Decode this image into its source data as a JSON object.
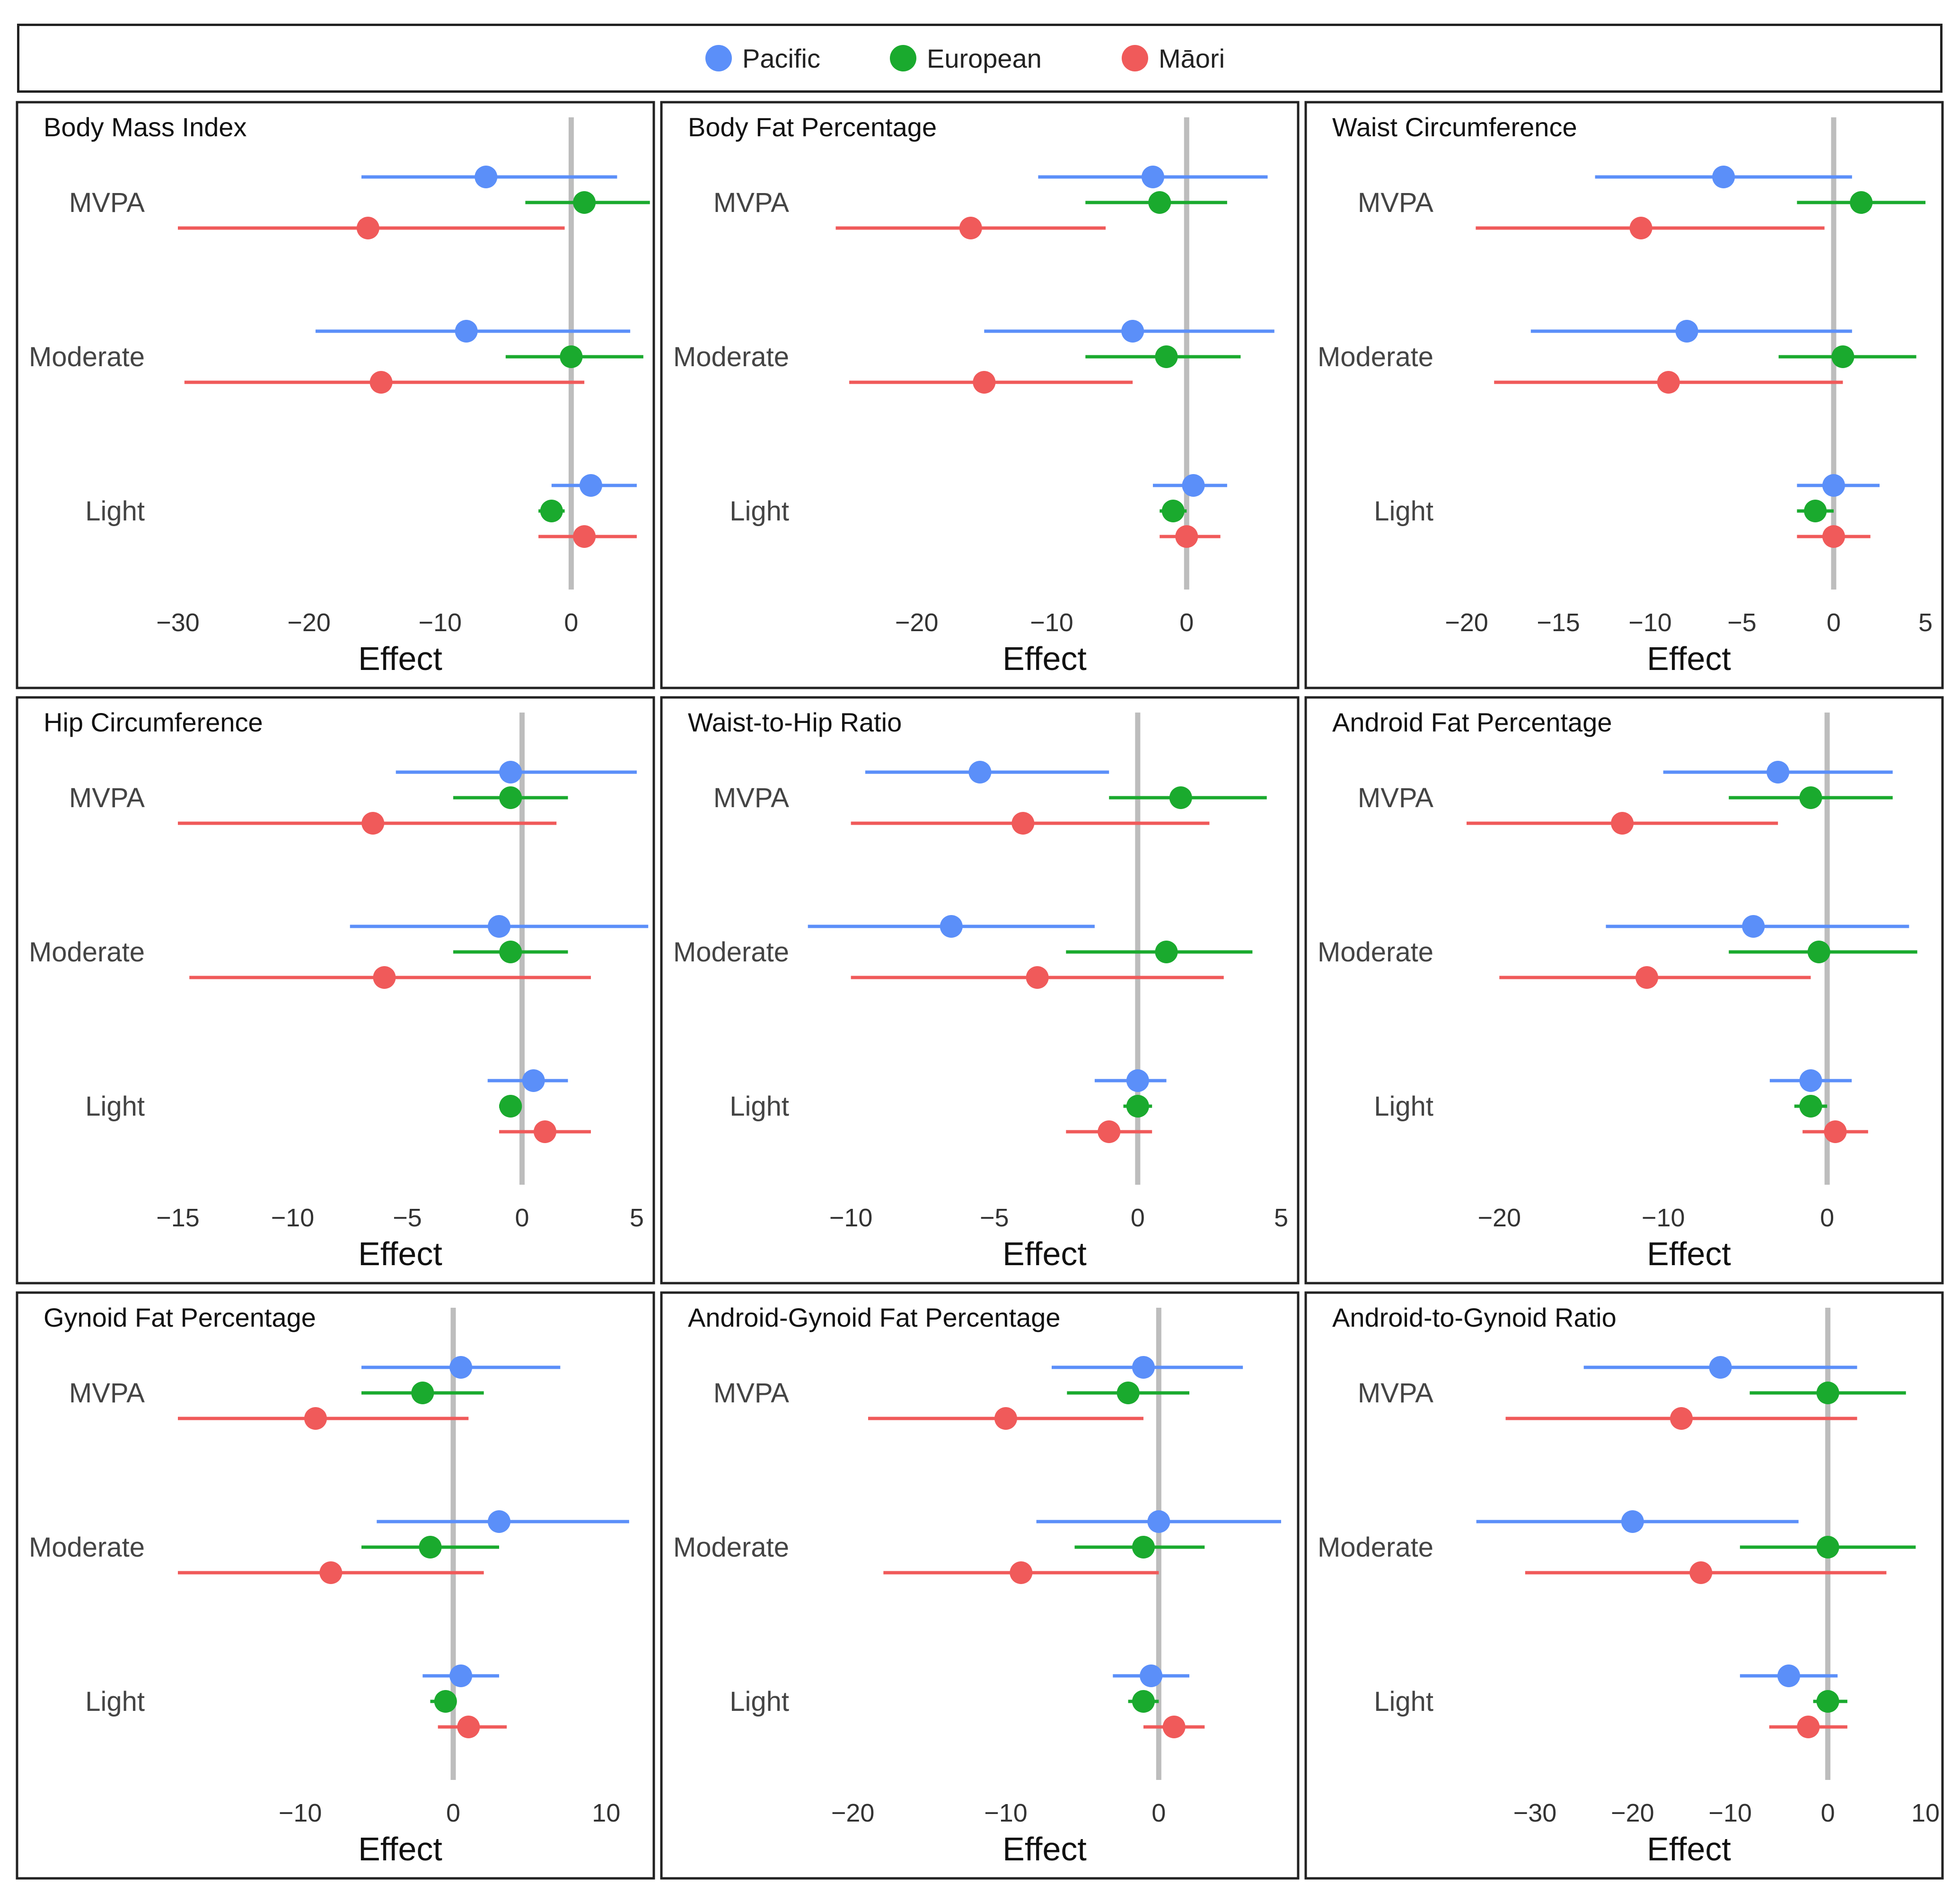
{
  "legend": {
    "items": [
      {
        "label": "Pacific",
        "color": "#5b8ff9"
      },
      {
        "label": "European",
        "color": "#1aaa2e"
      },
      {
        "label": "Māori",
        "color": "#f05a5a"
      }
    ]
  },
  "chart_data": [
    {
      "type": "forest",
      "title": "Body Mass Index",
      "xlabel": "Effect",
      "xlim": [
        -30,
        5
      ],
      "ticks": [
        -30,
        -20,
        -10,
        0
      ],
      "tick_labels": [
        "−30",
        "−20",
        "−10",
        "0"
      ],
      "categories": [
        "MVPA",
        "Moderate",
        "Light"
      ],
      "series": [
        {
          "name": "Pacific",
          "color": "#5b8ff9",
          "points": [
            {
              "category": "MVPA",
              "estimate": -6.5,
              "lower": -16,
              "upper": 3.5
            },
            {
              "category": "Moderate",
              "estimate": -8,
              "lower": -19.5,
              "upper": 4.5
            },
            {
              "category": "Light",
              "estimate": 1.5,
              "lower": -1.5,
              "upper": 5
            }
          ]
        },
        {
          "name": "European",
          "color": "#1aaa2e",
          "points": [
            {
              "category": "MVPA",
              "estimate": 1,
              "lower": -3.5,
              "upper": 6
            },
            {
              "category": "Moderate",
              "estimate": 0,
              "lower": -5,
              "upper": 5.5
            },
            {
              "category": "Light",
              "estimate": -1.5,
              "lower": -2.5,
              "upper": -0.5
            }
          ]
        },
        {
          "name": "Māori",
          "color": "#f05a5a",
          "points": [
            {
              "category": "MVPA",
              "estimate": -15.5,
              "lower": -30,
              "upper": -0.5
            },
            {
              "category": "Moderate",
              "estimate": -14.5,
              "lower": -29.5,
              "upper": 1
            },
            {
              "category": "Light",
              "estimate": 1,
              "lower": -2.5,
              "upper": 5
            }
          ]
        }
      ]
    },
    {
      "type": "forest",
      "title": "Body Fat Percentage",
      "xlabel": "Effect",
      "xlim": [
        -27,
        7
      ],
      "ticks": [
        -20,
        -10,
        0
      ],
      "tick_labels": [
        "−20",
        "−10",
        "0"
      ],
      "categories": [
        "MVPA",
        "Moderate",
        "Light"
      ],
      "series": [
        {
          "name": "Pacific",
          "color": "#5b8ff9",
          "points": [
            {
              "category": "MVPA",
              "estimate": -2.5,
              "lower": -11,
              "upper": 6
            },
            {
              "category": "Moderate",
              "estimate": -4,
              "lower": -15,
              "upper": 6.5
            },
            {
              "category": "Light",
              "estimate": 0.5,
              "lower": -2.5,
              "upper": 3
            }
          ]
        },
        {
          "name": "European",
          "color": "#1aaa2e",
          "points": [
            {
              "category": "MVPA",
              "estimate": -2,
              "lower": -7.5,
              "upper": 3
            },
            {
              "category": "Moderate",
              "estimate": -1.5,
              "lower": -7.5,
              "upper": 4
            },
            {
              "category": "Light",
              "estimate": -1,
              "lower": -2,
              "upper": 0
            }
          ]
        },
        {
          "name": "Māori",
          "color": "#f05a5a",
          "points": [
            {
              "category": "MVPA",
              "estimate": -16,
              "lower": -26,
              "upper": -6
            },
            {
              "category": "Moderate",
              "estimate": -15,
              "lower": -25,
              "upper": -4
            },
            {
              "category": "Light",
              "estimate": 0,
              "lower": -2,
              "upper": 2.5
            }
          ]
        }
      ]
    },
    {
      "type": "forest",
      "title": "Waist Circumference",
      "xlabel": "Effect",
      "xlim": [
        -20,
        5
      ],
      "ticks": [
        -20,
        -15,
        -10,
        -5,
        0,
        5
      ],
      "tick_labels": [
        "−20",
        "−15",
        "−10",
        "−5",
        "0",
        "5"
      ],
      "categories": [
        "MVPA",
        "Moderate",
        "Light"
      ],
      "series": [
        {
          "name": "Pacific",
          "color": "#5b8ff9",
          "points": [
            {
              "category": "MVPA",
              "estimate": -6,
              "lower": -13,
              "upper": 1
            },
            {
              "category": "Moderate",
              "estimate": -8,
              "lower": -16.5,
              "upper": 1
            },
            {
              "category": "Light",
              "estimate": 0,
              "lower": -2,
              "upper": 2.5
            }
          ]
        },
        {
          "name": "European",
          "color": "#1aaa2e",
          "points": [
            {
              "category": "MVPA",
              "estimate": 1.5,
              "lower": -2,
              "upper": 5
            },
            {
              "category": "Moderate",
              "estimate": 0.5,
              "lower": -3,
              "upper": 4.5
            },
            {
              "category": "Light",
              "estimate": -1,
              "lower": -2,
              "upper": 0
            }
          ]
        },
        {
          "name": "Māori",
          "color": "#f05a5a",
          "points": [
            {
              "category": "MVPA",
              "estimate": -10.5,
              "lower": -19.5,
              "upper": -0.5
            },
            {
              "category": "Moderate",
              "estimate": -9,
              "lower": -18.5,
              "upper": 0.5
            },
            {
              "category": "Light",
              "estimate": 0,
              "lower": -2,
              "upper": 2
            }
          ]
        }
      ]
    },
    {
      "type": "forest",
      "title": "Hip Circumference",
      "xlabel": "Effect",
      "xlim": [
        -15,
        5
      ],
      "ticks": [
        -15,
        -10,
        -5,
        0,
        5
      ],
      "tick_labels": [
        "−15",
        "−10",
        "−5",
        "0",
        "5"
      ],
      "categories": [
        "MVPA",
        "Moderate",
        "Light"
      ],
      "series": [
        {
          "name": "Pacific",
          "color": "#5b8ff9",
          "points": [
            {
              "category": "MVPA",
              "estimate": -0.5,
              "lower": -5.5,
              "upper": 5
            },
            {
              "category": "Moderate",
              "estimate": -1,
              "lower": -7.5,
              "upper": 5.5
            },
            {
              "category": "Light",
              "estimate": 0.5,
              "lower": -1.5,
              "upper": 2
            }
          ]
        },
        {
          "name": "European",
          "color": "#1aaa2e",
          "points": [
            {
              "category": "MVPA",
              "estimate": -0.5,
              "lower": -3,
              "upper": 2
            },
            {
              "category": "Moderate",
              "estimate": -0.5,
              "lower": -3,
              "upper": 2
            },
            {
              "category": "Light",
              "estimate": -0.5,
              "lower": -1,
              "upper": -0.3
            }
          ]
        },
        {
          "name": "Māori",
          "color": "#f05a5a",
          "points": [
            {
              "category": "MVPA",
              "estimate": -6.5,
              "lower": -15,
              "upper": 1.5
            },
            {
              "category": "Moderate",
              "estimate": -6,
              "lower": -14.5,
              "upper": 3
            },
            {
              "category": "Light",
              "estimate": 1,
              "lower": -1,
              "upper": 3
            }
          ]
        }
      ]
    },
    {
      "type": "forest",
      "title": "Waist-to-Hip Ratio",
      "xlabel": "Effect",
      "xlim": [
        -11,
        5
      ],
      "ticks": [
        -10,
        -5,
        0,
        5
      ],
      "tick_labels": [
        "−10",
        "−5",
        "0",
        "5"
      ],
      "categories": [
        "MVPA",
        "Moderate",
        "Light"
      ],
      "series": [
        {
          "name": "Pacific",
          "color": "#5b8ff9",
          "points": [
            {
              "category": "MVPA",
              "estimate": -5.5,
              "lower": -9.5,
              "upper": -1
            },
            {
              "category": "Moderate",
              "estimate": -6.5,
              "lower": -11.5,
              "upper": -1.5
            },
            {
              "category": "Light",
              "estimate": 0,
              "lower": -1.5,
              "upper": 1
            }
          ]
        },
        {
          "name": "European",
          "color": "#1aaa2e",
          "points": [
            {
              "category": "MVPA",
              "estimate": 1.5,
              "lower": -1,
              "upper": 4.5
            },
            {
              "category": "Moderate",
              "estimate": 1,
              "lower": -2.5,
              "upper": 4
            },
            {
              "category": "Light",
              "estimate": 0,
              "lower": -0.5,
              "upper": 0.5
            }
          ]
        },
        {
          "name": "Māori",
          "color": "#f05a5a",
          "points": [
            {
              "category": "MVPA",
              "estimate": -4,
              "lower": -10,
              "upper": 2.5
            },
            {
              "category": "Moderate",
              "estimate": -3.5,
              "lower": -10,
              "upper": 3
            },
            {
              "category": "Light",
              "estimate": -1,
              "lower": -2.5,
              "upper": 0.5
            }
          ]
        }
      ]
    },
    {
      "type": "forest",
      "title": "Android Fat Percentage",
      "xlabel": "Effect",
      "xlim": [
        -22,
        6
      ],
      "ticks": [
        -20,
        -10,
        0
      ],
      "tick_labels": [
        "−20",
        "−10",
        "0"
      ],
      "categories": [
        "MVPA",
        "Moderate",
        "Light"
      ],
      "series": [
        {
          "name": "Pacific",
          "color": "#5b8ff9",
          "points": [
            {
              "category": "MVPA",
              "estimate": -3,
              "lower": -10,
              "upper": 4
            },
            {
              "category": "Moderate",
              "estimate": -4.5,
              "lower": -13.5,
              "upper": 5
            },
            {
              "category": "Light",
              "estimate": -1,
              "lower": -3.5,
              "upper": 1.5
            }
          ]
        },
        {
          "name": "European",
          "color": "#1aaa2e",
          "points": [
            {
              "category": "MVPA",
              "estimate": -1,
              "lower": -6,
              "upper": 4
            },
            {
              "category": "Moderate",
              "estimate": -0.5,
              "lower": -6,
              "upper": 5.5
            },
            {
              "category": "Light",
              "estimate": -1,
              "lower": -2,
              "upper": 0
            }
          ]
        },
        {
          "name": "Māori",
          "color": "#f05a5a",
          "points": [
            {
              "category": "MVPA",
              "estimate": -12.5,
              "lower": -22,
              "upper": -3
            },
            {
              "category": "Moderate",
              "estimate": -11,
              "lower": -20,
              "upper": -1
            },
            {
              "category": "Light",
              "estimate": 0.5,
              "lower": -1.5,
              "upper": 2.5
            }
          ]
        }
      ]
    },
    {
      "type": "forest",
      "title": "Gynoid Fat Percentage",
      "xlabel": "Effect",
      "xlim": [
        -18,
        12
      ],
      "ticks": [
        -10,
        0,
        10
      ],
      "tick_labels": [
        "−10",
        "0",
        "10"
      ],
      "categories": [
        "MVPA",
        "Moderate",
        "Light"
      ],
      "series": [
        {
          "name": "Pacific",
          "color": "#5b8ff9",
          "points": [
            {
              "category": "MVPA",
              "estimate": 0.5,
              "lower": -6,
              "upper": 7
            },
            {
              "category": "Moderate",
              "estimate": 3,
              "lower": -5,
              "upper": 11.5
            },
            {
              "category": "Light",
              "estimate": 0.5,
              "lower": -2,
              "upper": 3
            }
          ]
        },
        {
          "name": "European",
          "color": "#1aaa2e",
          "points": [
            {
              "category": "MVPA",
              "estimate": -2,
              "lower": -6,
              "upper": 2
            },
            {
              "category": "Moderate",
              "estimate": -1.5,
              "lower": -6,
              "upper": 3
            },
            {
              "category": "Light",
              "estimate": -0.5,
              "lower": -1.5,
              "upper": 0
            }
          ]
        },
        {
          "name": "Māori",
          "color": "#f05a5a",
          "points": [
            {
              "category": "MVPA",
              "estimate": -9,
              "lower": -18,
              "upper": 1
            },
            {
              "category": "Moderate",
              "estimate": -8,
              "lower": -18,
              "upper": 2
            },
            {
              "category": "Light",
              "estimate": 1,
              "lower": -1,
              "upper": 3.5
            }
          ]
        }
      ]
    },
    {
      "type": "forest",
      "title": "Android-Gynoid Fat Percentage",
      "xlabel": "Effect",
      "xlim": [
        -22,
        8
      ],
      "ticks": [
        -20,
        -10,
        0
      ],
      "tick_labels": [
        "−20",
        "−10",
        "0"
      ],
      "categories": [
        "MVPA",
        "Moderate",
        "Light"
      ],
      "series": [
        {
          "name": "Pacific",
          "color": "#5b8ff9",
          "points": [
            {
              "category": "MVPA",
              "estimate": -1,
              "lower": -7,
              "upper": 5.5
            },
            {
              "category": "Moderate",
              "estimate": 0,
              "lower": -8,
              "upper": 8
            },
            {
              "category": "Light",
              "estimate": -0.5,
              "lower": -3,
              "upper": 2
            }
          ]
        },
        {
          "name": "European",
          "color": "#1aaa2e",
          "points": [
            {
              "category": "MVPA",
              "estimate": -2,
              "lower": -6,
              "upper": 2
            },
            {
              "category": "Moderate",
              "estimate": -1,
              "lower": -5.5,
              "upper": 3
            },
            {
              "category": "Light",
              "estimate": -1,
              "lower": -2,
              "upper": 0
            }
          ]
        },
        {
          "name": "Māori",
          "color": "#f05a5a",
          "points": [
            {
              "category": "MVPA",
              "estimate": -10,
              "lower": -19,
              "upper": -1
            },
            {
              "category": "Moderate",
              "estimate": -9,
              "lower": -18,
              "upper": 0
            },
            {
              "category": "Light",
              "estimate": 1,
              "lower": -1,
              "upper": 3
            }
          ]
        }
      ]
    },
    {
      "type": "forest",
      "title": "Android-to-Gynoid Ratio",
      "xlabel": "Effect",
      "xlim": [
        -37,
        10
      ],
      "ticks": [
        -30,
        -20,
        -10,
        0,
        10
      ],
      "tick_labels": [
        "−30",
        "−20",
        "−10",
        "0",
        "10"
      ],
      "categories": [
        "MVPA",
        "Moderate",
        "Light"
      ],
      "series": [
        {
          "name": "Pacific",
          "color": "#5b8ff9",
          "points": [
            {
              "category": "MVPA",
              "estimate": -11,
              "lower": -25,
              "upper": 3
            },
            {
              "category": "Moderate",
              "estimate": -20,
              "lower": -36,
              "upper": -3
            },
            {
              "category": "Light",
              "estimate": -4,
              "lower": -9,
              "upper": 1
            }
          ]
        },
        {
          "name": "European",
          "color": "#1aaa2e",
          "points": [
            {
              "category": "MVPA",
              "estimate": 0,
              "lower": -8,
              "upper": 8
            },
            {
              "category": "Moderate",
              "estimate": 0,
              "lower": -9,
              "upper": 9
            },
            {
              "category": "Light",
              "estimate": 0,
              "lower": -1.5,
              "upper": 2
            }
          ]
        },
        {
          "name": "Māori",
          "color": "#f05a5a",
          "points": [
            {
              "category": "MVPA",
              "estimate": -15,
              "lower": -33,
              "upper": 3
            },
            {
              "category": "Moderate",
              "estimate": -13,
              "lower": -31,
              "upper": 6
            },
            {
              "category": "Light",
              "estimate": -2,
              "lower": -6,
              "upper": 2
            }
          ]
        }
      ]
    }
  ]
}
